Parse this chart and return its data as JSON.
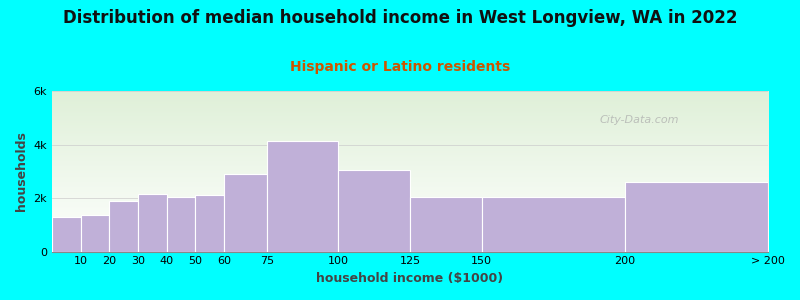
{
  "title": "Distribution of median household income in West Longview, WA in 2022",
  "subtitle": "Hispanic or Latino residents",
  "xlabel": "household income ($1000)",
  "ylabel": "households",
  "background_color": "#00FFFF",
  "plot_bg_gradient_top": "#dff0d8",
  "plot_bg_gradient_bottom": "#ffffff",
  "bar_color": "#c0b0d8",
  "bar_edge_color": "#ffffff",
  "bin_edges": [
    0,
    10,
    20,
    30,
    40,
    50,
    60,
    75,
    100,
    125,
    150,
    200,
    250
  ],
  "bin_labels": [
    "10",
    "20",
    "30",
    "40",
    "50",
    "60",
    "75",
    "100",
    "125",
    "150",
    "200",
    "> 200"
  ],
  "values": [
    1300,
    1350,
    1900,
    2150,
    2050,
    2100,
    2900,
    4150,
    3050,
    2050,
    2050,
    2600
  ],
  "ylim": [
    0,
    6000
  ],
  "yticks": [
    0,
    2000,
    4000,
    6000
  ],
  "ytick_labels": [
    "0",
    "2k",
    "4k",
    "6k"
  ],
  "title_fontsize": 12,
  "subtitle_fontsize": 10,
  "subtitle_color": "#cc5500",
  "axis_label_fontsize": 9,
  "tick_fontsize": 8,
  "watermark_text": "City-Data.com",
  "watermark_color": "#aaaaaa"
}
